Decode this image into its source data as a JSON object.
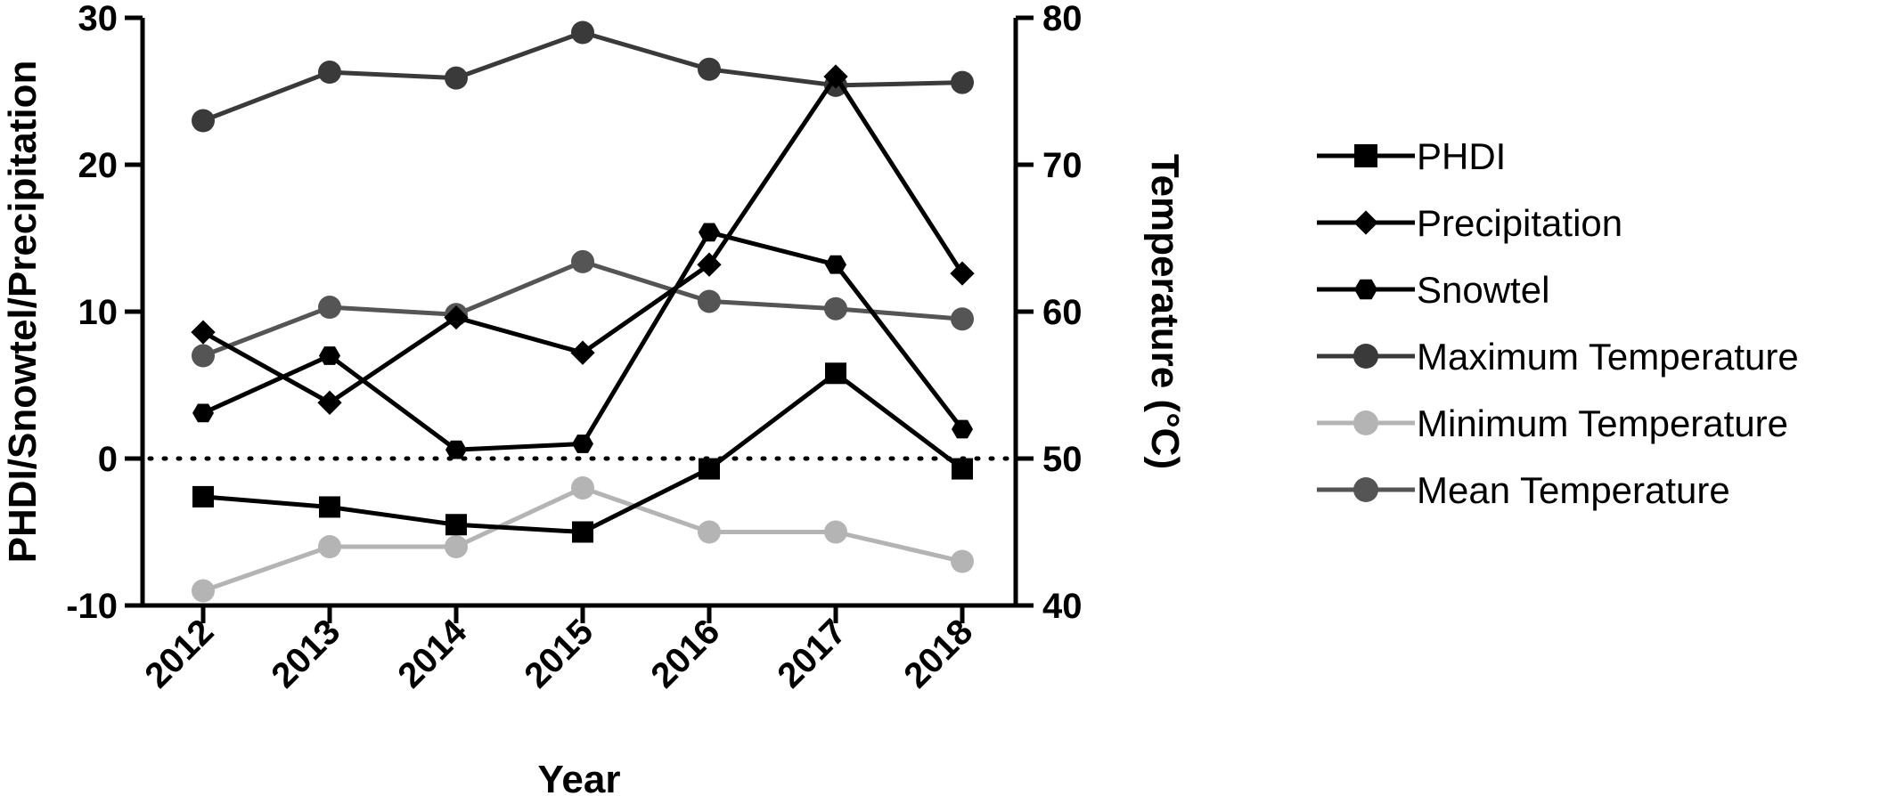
{
  "chart_data": {
    "type": "line",
    "xlabel": "Year",
    "ylabel_left": "PHDI/Snowtel/Precipitation",
    "ylabel_right": "Temperature (°C)",
    "categories": [
      "2012",
      "2013",
      "2014",
      "2015",
      "2016",
      "2017",
      "2018"
    ],
    "ylim_left": [
      -10,
      30
    ],
    "yticks_left": [
      -10,
      0,
      10,
      20,
      30
    ],
    "ylim_right": [
      40,
      80
    ],
    "yticks_right": [
      40,
      50,
      60,
      70,
      80
    ],
    "reference_line": {
      "y": 0,
      "style": "dotted"
    },
    "legend_position": "right",
    "series": [
      {
        "name": "PHDI",
        "axis": "left",
        "marker": "square",
        "color": "#000000",
        "values": [
          -2.6,
          -3.3,
          -4.5,
          -5.0,
          -0.7,
          5.8,
          -0.7
        ]
      },
      {
        "name": "Precipitation",
        "axis": "left",
        "marker": "diamond",
        "color": "#000000",
        "values": [
          8.6,
          3.8,
          9.6,
          7.2,
          13.2,
          26.0,
          12.6
        ]
      },
      {
        "name": "Snowtel",
        "axis": "left",
        "marker": "hexagon",
        "color": "#000000",
        "values": [
          3.1,
          7.0,
          0.6,
          1.0,
          15.4,
          13.2,
          2.0
        ]
      },
      {
        "name": "Maximum Temperature",
        "axis": "right",
        "marker": "circle",
        "color": "#3a3a3a",
        "values": [
          73.0,
          76.3,
          75.9,
          79.0,
          76.5,
          75.4,
          75.6
        ]
      },
      {
        "name": "Minimum Temperature",
        "axis": "right",
        "marker": "circle",
        "color": "#b4b4b4",
        "values": [
          41.0,
          44.0,
          44.0,
          48.0,
          45.0,
          45.0,
          43.0
        ]
      },
      {
        "name": "Mean Temperature",
        "axis": "right",
        "marker": "circle",
        "color": "#555555",
        "values": [
          57.0,
          60.3,
          59.8,
          63.4,
          60.7,
          60.2,
          59.5
        ]
      }
    ]
  }
}
